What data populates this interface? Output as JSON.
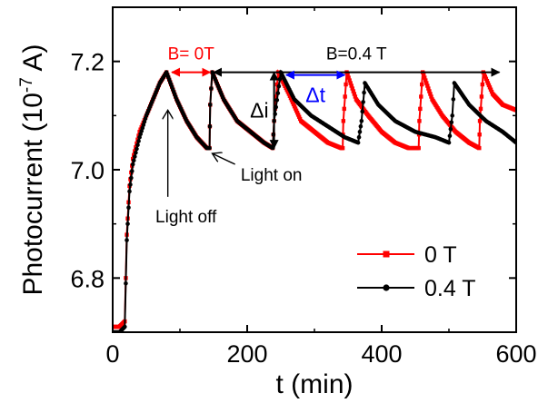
{
  "chart_data": {
    "type": "line",
    "xlabel": "t (min)",
    "ylabel_main": "Photocurrent (10",
    "ylabel_sup": "-7",
    "ylabel_end": " A)",
    "xlim": [
      0,
      600
    ],
    "ylim": [
      6.7,
      7.3
    ],
    "x_ticks": [
      0,
      200,
      400,
      600
    ],
    "x_tick_labels": [
      "0",
      "200",
      "400",
      "600"
    ],
    "y_ticks": [
      6.8,
      7.0,
      7.2
    ],
    "y_tick_labels": [
      "6.8",
      "7.0",
      "7.2"
    ],
    "grid": false,
    "legend_position": "bottom-right",
    "series": [
      {
        "name": "0 T",
        "color": "#ff0000",
        "marker": "square",
        "points": [
          [
            0,
            6.71
          ],
          [
            10,
            6.71
          ],
          [
            18,
            6.72
          ],
          [
            21,
            6.88
          ],
          [
            25,
            6.97
          ],
          [
            30,
            7.02
          ],
          [
            40,
            7.07
          ],
          [
            50,
            7.1
          ],
          [
            60,
            7.13
          ],
          [
            70,
            7.16
          ],
          [
            80,
            7.18
          ],
          [
            95,
            7.13
          ],
          [
            110,
            7.09
          ],
          [
            125,
            7.06
          ],
          [
            140,
            7.04
          ],
          [
            144,
            7.04
          ],
          [
            145,
            7.12
          ],
          [
            148,
            7.18
          ],
          [
            165,
            7.13
          ],
          [
            185,
            7.09
          ],
          [
            205,
            7.07
          ],
          [
            225,
            7.05
          ],
          [
            238,
            7.04
          ],
          [
            240,
            7.09
          ],
          [
            246,
            7.18
          ],
          [
            262,
            7.14
          ],
          [
            280,
            7.09
          ],
          [
            300,
            7.07
          ],
          [
            320,
            7.05
          ],
          [
            340,
            7.04
          ],
          [
            342,
            7.04
          ],
          [
            343,
            7.09
          ],
          [
            348,
            7.18
          ],
          [
            362,
            7.13
          ],
          [
            380,
            7.1
          ],
          [
            400,
            7.07
          ],
          [
            420,
            7.05
          ],
          [
            440,
            7.04
          ],
          [
            455,
            7.04
          ],
          [
            456,
            7.09
          ],
          [
            461,
            7.18
          ],
          [
            475,
            7.13
          ],
          [
            490,
            7.1
          ],
          [
            510,
            7.07
          ],
          [
            530,
            7.05
          ],
          [
            545,
            7.04
          ],
          [
            546,
            7.09
          ],
          [
            551,
            7.18
          ],
          [
            565,
            7.14
          ],
          [
            580,
            7.12
          ],
          [
            600,
            7.11
          ]
        ]
      },
      {
        "name": "0.4 T",
        "color": "#000000",
        "marker": "circle",
        "points": [
          [
            0,
            6.7
          ],
          [
            10,
            6.7
          ],
          [
            18,
            6.71
          ],
          [
            21,
            6.87
          ],
          [
            25,
            6.96
          ],
          [
            30,
            7.01
          ],
          [
            40,
            7.06
          ],
          [
            50,
            7.1
          ],
          [
            60,
            7.13
          ],
          [
            70,
            7.16
          ],
          [
            80,
            7.18
          ],
          [
            95,
            7.13
          ],
          [
            110,
            7.09
          ],
          [
            125,
            7.06
          ],
          [
            140,
            7.04
          ],
          [
            144,
            7.04
          ],
          [
            145,
            7.12
          ],
          [
            148,
            7.18
          ],
          [
            165,
            7.13
          ],
          [
            185,
            7.09
          ],
          [
            205,
            7.07
          ],
          [
            225,
            7.05
          ],
          [
            238,
            7.04
          ],
          [
            240,
            7.09
          ],
          [
            250,
            7.18
          ],
          [
            270,
            7.13
          ],
          [
            295,
            7.1
          ],
          [
            320,
            7.08
          ],
          [
            345,
            7.06
          ],
          [
            365,
            7.05
          ],
          [
            370,
            7.09
          ],
          [
            375,
            7.16
          ],
          [
            395,
            7.12
          ],
          [
            420,
            7.09
          ],
          [
            450,
            7.07
          ],
          [
            480,
            7.06
          ],
          [
            500,
            7.05
          ],
          [
            505,
            7.1
          ],
          [
            508,
            7.16
          ],
          [
            530,
            7.12
          ],
          [
            555,
            7.09
          ],
          [
            580,
            7.07
          ],
          [
            600,
            7.05
          ]
        ]
      }
    ],
    "annotations": {
      "b0_label": "B= 0T",
      "b04_label": "B=0.4 T",
      "delta_i": "Δi",
      "delta_t": "Δt",
      "light_off": "Light off",
      "light_on": "Light on"
    },
    "annotation_colors": {
      "b0": "#ff0000",
      "delta_t": "#0000ff",
      "default": "#000000"
    },
    "annotation_anchors": {
      "b0_arrow": [
        [
          88,
          7.18
        ],
        [
          145,
          7.18
        ]
      ],
      "b04_arrow": [
        [
          150,
          7.18
        ],
        [
          575,
          7.18
        ]
      ],
      "delta_i_arrow": [
        [
          240,
          7.04
        ],
        [
          240,
          7.18
        ]
      ],
      "delta_t_arrow": [
        [
          258,
          7.175
        ],
        [
          345,
          7.175
        ]
      ],
      "light_off_arrow": [
        [
          82,
          6.95
        ],
        [
          82,
          7.11
        ]
      ],
      "light_on_arrow": [
        [
          182,
          7.01
        ],
        [
          148,
          7.03
        ]
      ]
    }
  }
}
